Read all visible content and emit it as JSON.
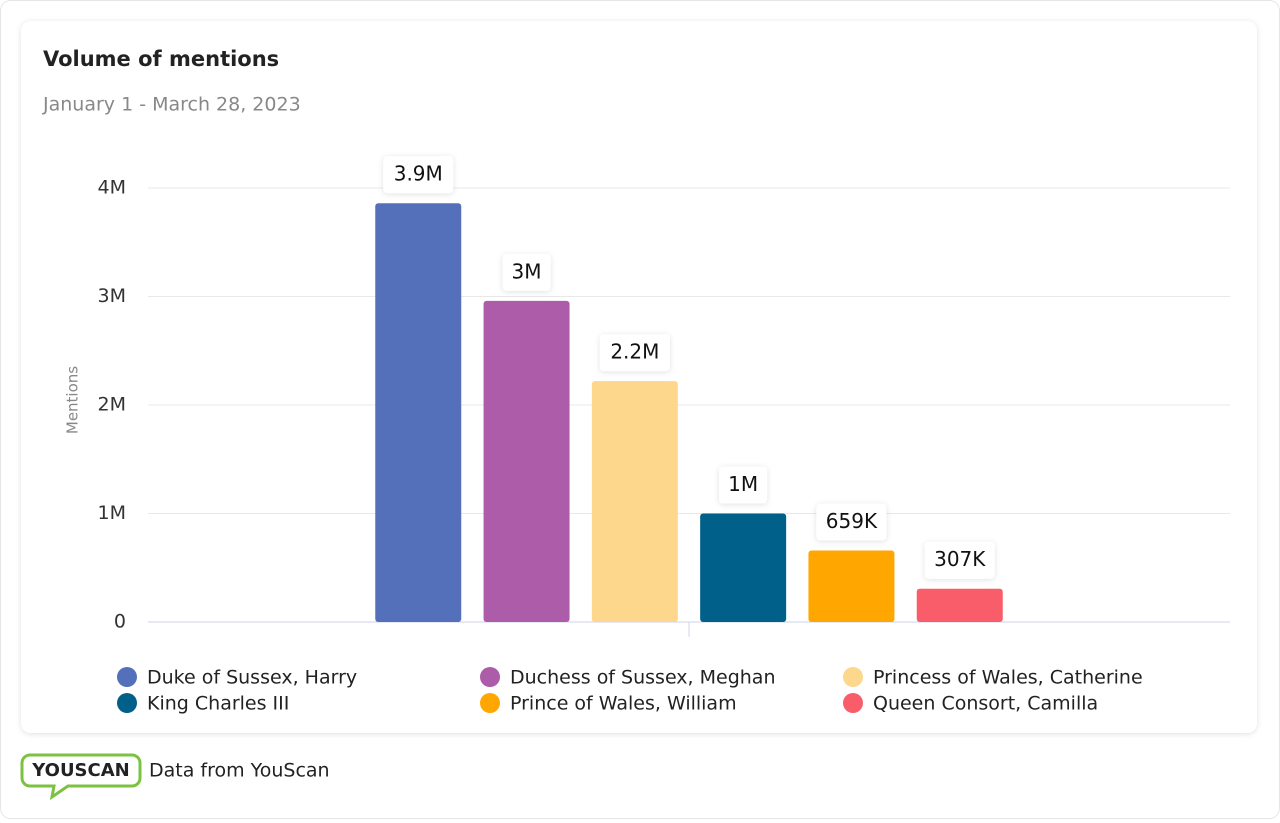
{
  "chart_data": {
    "type": "bar",
    "title": "Volume of mentions",
    "subtitle": "January 1 - March 28, 2023",
    "y_label": "Mentions",
    "categories": [
      null
    ],
    "series": [
      {
        "name": "Duke of Sussex, Harry",
        "color": "#5470bb",
        "values": [
          3860000
        ],
        "value_labels": [
          "3.9M"
        ]
      },
      {
        "name": "Duchess of Sussex, Meghan",
        "color": "#ac5ca8",
        "values": [
          2960000
        ],
        "value_labels": [
          "3M"
        ]
      },
      {
        "name": "Princess of Wales, Catherine",
        "color": "#fdd78c",
        "values": [
          2220000
        ],
        "value_labels": [
          "2.2M"
        ]
      },
      {
        "name": "King Charles III",
        "color": "#00608a",
        "values": [
          1000000
        ],
        "value_labels": [
          "1M"
        ]
      },
      {
        "name": "Prince of Wales, William",
        "color": "#ffa600",
        "values": [
          659000
        ],
        "value_labels": [
          "659K"
        ]
      },
      {
        "name": "Queen Consort, Camilla",
        "color": "#f95d6a",
        "values": [
          307000
        ],
        "value_labels": [
          "307K"
        ]
      }
    ],
    "ylim": [
      0,
      4000000
    ],
    "yticks": [
      0,
      {
        "value": 1000000,
        "label": "1M"
      },
      {
        "value": 2000000,
        "label": "2M"
      },
      {
        "value": 3000000,
        "label": "3M"
      },
      {
        "value": 4000000,
        "label": "4M"
      }
    ],
    "grid": true
  },
  "footer": {
    "logo": "YOUSCAN",
    "source": "Data from YouScan"
  }
}
